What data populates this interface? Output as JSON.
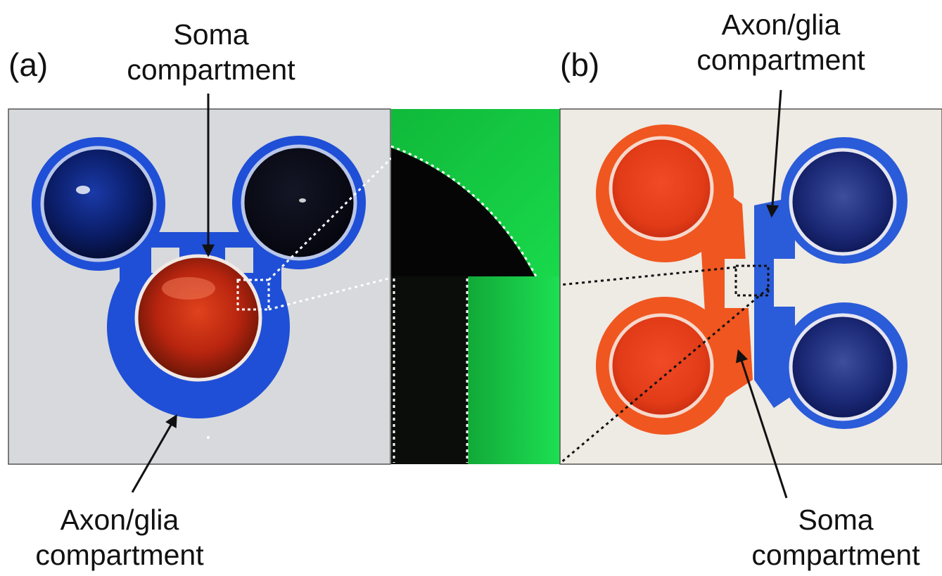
{
  "panel_a": {
    "tag": "(a)",
    "label_top": [
      "Soma",
      "compartment"
    ],
    "label_bottom": [
      "Axon/glia",
      "compartment"
    ]
  },
  "panel_b": {
    "tag": "(b)",
    "label_top": [
      "Axon/glia",
      "compartment"
    ],
    "label_bottom": [
      "Soma",
      "compartment"
    ]
  },
  "colors": {
    "blue_dye": "#1f4fd6",
    "red_dye": "#e8471c",
    "fluorescence": "#17d84a",
    "background_a": "#d7d9dc",
    "background_b": "#eeeae4"
  }
}
